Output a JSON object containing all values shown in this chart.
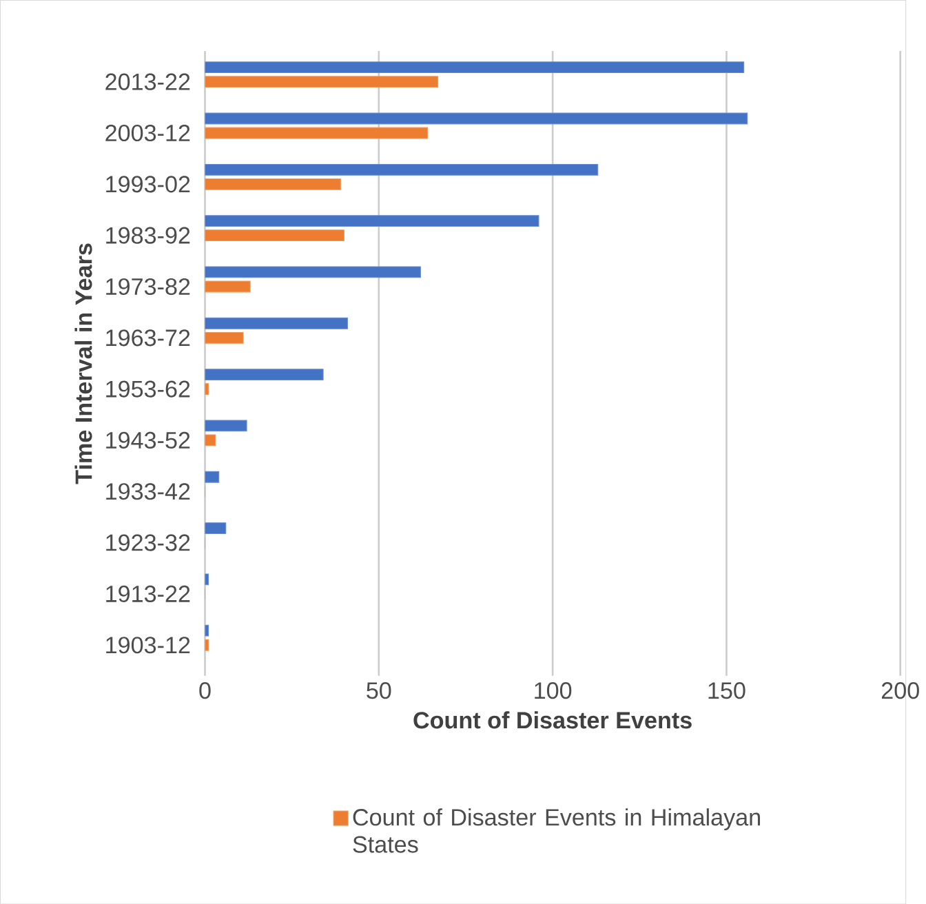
{
  "chart_data": {
    "type": "bar",
    "orientation": "horizontal",
    "xlabel": "Count of Disaster Events",
    "ylabel": "Time Interval in Years",
    "categories": [
      "2013-22",
      "2003-12",
      "1993-02",
      "1983-92",
      "1973-82",
      "1963-72",
      "1953-62",
      "1943-52",
      "1933-42",
      "1923-32",
      "1913-22",
      "1903-12"
    ],
    "series": [
      {
        "name": "Count of Disaster Events in Himalayan States",
        "color": "#ed7d31",
        "values": [
          67,
          64,
          39,
          40,
          13,
          11,
          1,
          3,
          0,
          0,
          0,
          1
        ]
      },
      {
        "color": "#4472c4",
        "values": [
          155,
          156,
          113,
          96,
          62,
          41,
          34,
          12,
          4,
          6,
          1,
          1
        ]
      }
    ],
    "xlim": [
      0,
      200
    ],
    "xticks": [
      0,
      50,
      100,
      150,
      200
    ],
    "grid": "x",
    "legend": "bottom"
  }
}
